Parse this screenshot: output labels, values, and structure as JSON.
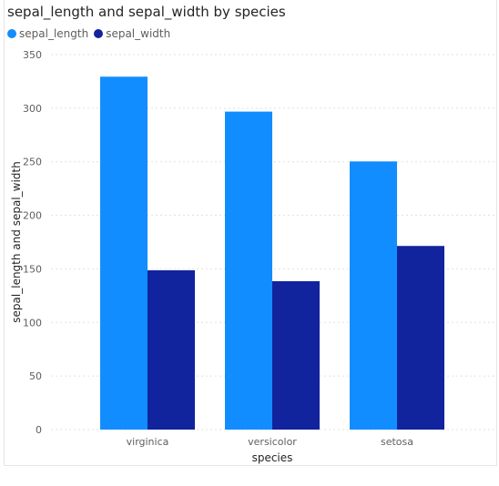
{
  "chart_data": {
    "type": "bar",
    "title": "sepal_length and sepal_width by species",
    "xlabel": "species",
    "ylabel": "sepal_length and sepal_width",
    "categories": [
      "virginica",
      "versicolor",
      "setosa"
    ],
    "series": [
      {
        "name": "sepal_length",
        "color": "#118DFF",
        "values": [
          329.4,
          296.8,
          250.3
        ]
      },
      {
        "name": "sepal_width",
        "color": "#12239E",
        "values": [
          148.7,
          138.5,
          171.4
        ]
      }
    ],
    "ylim": [
      0,
      350
    ],
    "yticks": [
      0,
      50,
      100,
      150,
      200,
      250,
      300,
      350
    ],
    "grid": true,
    "legend": "top-left"
  }
}
